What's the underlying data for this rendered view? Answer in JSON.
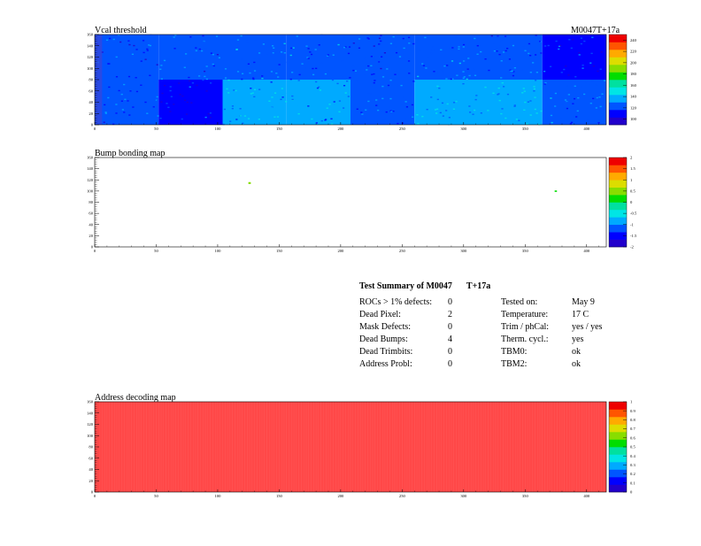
{
  "module_tag": "M0047T+17a",
  "charts": [
    {
      "id": "vcal",
      "type": "heatmap",
      "title": "Vcal threshold",
      "x_ticks": [
        0,
        50,
        100,
        150,
        200,
        250,
        300,
        350,
        400
      ],
      "y_ticks": [
        0,
        20,
        40,
        60,
        80,
        100,
        120,
        140,
        160
      ],
      "xlim": [
        0,
        416
      ],
      "ylim": [
        0,
        160
      ],
      "z_ticks": [
        100,
        120,
        140,
        160,
        180,
        200,
        220,
        240
      ],
      "zlim": [
        90,
        250
      ],
      "roc_means_top": [
        118,
        122,
        126,
        124,
        118,
        126,
        120,
        116
      ],
      "roc_means_bottom": [
        122,
        114,
        134,
        130,
        122,
        136,
        136,
        126
      ],
      "colors": [
        "#2200cc",
        "#0000ff",
        "#0055ff",
        "#00aaff",
        "#00e5e5",
        "#00e0a0",
        "#00dd00",
        "#88dd00",
        "#dddd00",
        "#ffaa00",
        "#ff5500",
        "#ee0000"
      ]
    },
    {
      "id": "bump",
      "type": "heatmap",
      "title": "Bump bonding map",
      "x_ticks": [
        0,
        50,
        100,
        150,
        200,
        250,
        300,
        350,
        400
      ],
      "y_ticks": [
        0,
        20,
        40,
        60,
        80,
        100,
        120,
        140,
        160
      ],
      "xlim": [
        0,
        416
      ],
      "ylim": [
        0,
        160
      ],
      "z_ticks": [
        -2,
        -1.5,
        -1,
        -0.5,
        0,
        0.5,
        1,
        1.5,
        2
      ],
      "z_tick_labels": [
        "-2",
        "-1.5",
        "-1",
        "-0.5",
        "0",
        "0.5",
        "1",
        "1.5",
        "2"
      ],
      "zlim": [
        -2,
        2
      ],
      "dead_pixels": [
        {
          "x": 125,
          "y": 115,
          "z": 0.6
        },
        {
          "x": 125,
          "y": 114,
          "z": 0.6
        },
        {
          "x": 374,
          "y": 100,
          "z": 0.3
        }
      ],
      "colors": [
        "#2200cc",
        "#0000ff",
        "#0055ff",
        "#00aaff",
        "#00e5e5",
        "#00e0a0",
        "#00dd00",
        "#88dd00",
        "#dddd00",
        "#ffaa00",
        "#ff5500",
        "#ee0000"
      ]
    },
    {
      "id": "address",
      "type": "heatmap",
      "title": "Address decoding map",
      "x_ticks": [
        0,
        50,
        100,
        150,
        200,
        250,
        300,
        350,
        400
      ],
      "y_ticks": [
        0,
        20,
        40,
        60,
        80,
        100,
        120,
        140,
        160
      ],
      "xlim": [
        0,
        416
      ],
      "ylim": [
        0,
        160
      ],
      "z_ticks": [
        0,
        0.1,
        0.2,
        0.3,
        0.4,
        0.5,
        0.6,
        0.7,
        0.8,
        0.9,
        1
      ],
      "zlim": [
        0,
        1
      ],
      "fill_value": 1,
      "fill_color": "#ff4848",
      "colors": [
        "#2200cc",
        "#0000ff",
        "#0055ff",
        "#00aaff",
        "#00e5e5",
        "#00e0a0",
        "#00dd00",
        "#88dd00",
        "#dddd00",
        "#ffaa00",
        "#ff5500",
        "#ee0000"
      ]
    }
  ],
  "summary": {
    "title": "Test Summary of M0047",
    "title_suffix": "T+17a",
    "left": [
      {
        "label": "ROCs > 1% defects:",
        "value": "0"
      },
      {
        "label": "Dead Pixel:",
        "value": "2"
      },
      {
        "label": "Mask Defects:",
        "value": "0"
      },
      {
        "label": "Dead Bumps:",
        "value": "4"
      },
      {
        "label": "Dead Trimbits:",
        "value": "0"
      },
      {
        "label": "Address Probl:",
        "value": "0"
      }
    ],
    "right": [
      {
        "label": "Tested on:",
        "value": "May 9"
      },
      {
        "label": "Temperature:",
        "value": "17 C"
      },
      {
        "label": "Trim / phCal:",
        "value": "yes / yes"
      },
      {
        "label": "Therm. cycl.:",
        "value": "yes"
      },
      {
        "label": "TBM0:",
        "value": "ok"
      },
      {
        "label": "TBM2:",
        "value": "ok"
      }
    ]
  }
}
